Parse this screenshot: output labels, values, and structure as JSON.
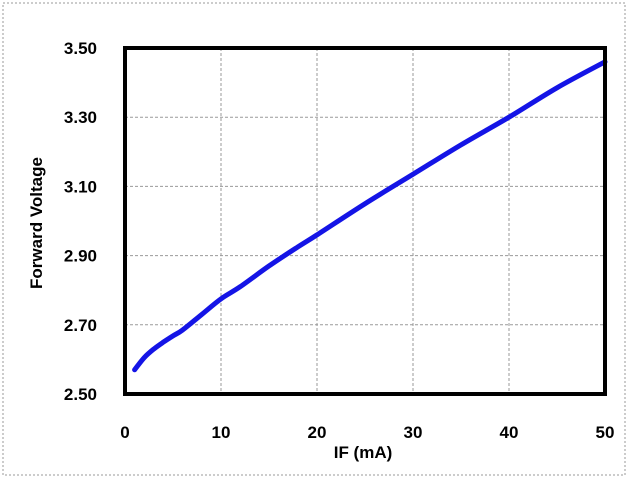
{
  "colors": {
    "line": "#1414E6",
    "frame": "#000000",
    "grid": "#9A9A9A",
    "background": "#FFFFFF",
    "outer_border": "#BBBBBB"
  },
  "chart_data": {
    "type": "line",
    "title": "",
    "xlabel": "IF (mA)",
    "ylabel": "Forward Voltage",
    "xlim": [
      0,
      50
    ],
    "ylim": [
      2.5,
      3.5
    ],
    "x_ticks": [
      0,
      10,
      20,
      30,
      40,
      50
    ],
    "x_tick_labels": [
      "0",
      "10",
      "20",
      "30",
      "40",
      "50"
    ],
    "y_ticks": [
      2.5,
      2.7,
      2.9,
      3.1,
      3.3,
      3.5
    ],
    "y_tick_labels": [
      "2.50",
      "2.70",
      "2.90",
      "3.10",
      "3.30",
      "3.50"
    ],
    "grid": true,
    "series": [
      {
        "x": [
          1,
          2,
          3,
          4,
          5,
          6,
          8,
          10,
          12,
          15,
          18,
          20,
          25,
          30,
          35,
          40,
          45,
          50
        ],
        "y": [
          2.57,
          2.605,
          2.63,
          2.65,
          2.668,
          2.685,
          2.73,
          2.775,
          2.81,
          2.87,
          2.925,
          2.96,
          3.05,
          3.135,
          3.22,
          3.3,
          3.385,
          3.46
        ]
      }
    ]
  }
}
